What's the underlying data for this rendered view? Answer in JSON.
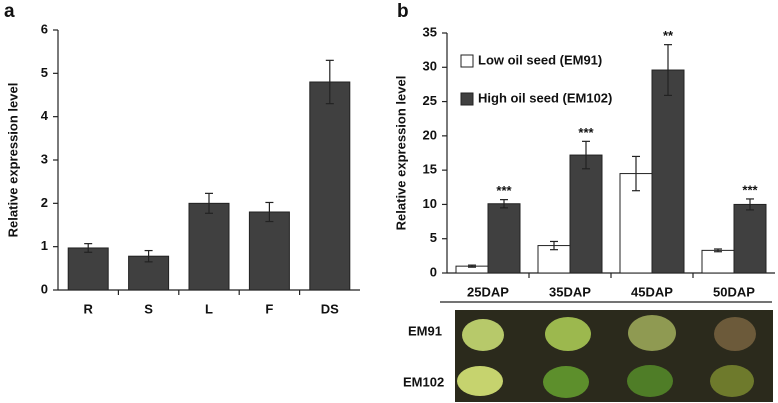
{
  "panel_labels": [
    "a",
    "b"
  ],
  "photo": {
    "row_labels": [
      "EM91",
      "EM102"
    ]
  },
  "chart_data": [
    {
      "type": "bar",
      "y_label": "Relative expression level",
      "categories": [
        "R",
        "S",
        "L",
        "F",
        "DS"
      ],
      "values": [
        0.97,
        0.78,
        2.0,
        1.8,
        4.8
      ],
      "errors": [
        0.1,
        0.13,
        0.23,
        0.22,
        0.5
      ],
      "color": "#404040",
      "ylim": [
        0,
        6
      ],
      "yticks": [
        0,
        1,
        2,
        3,
        4,
        5,
        6
      ]
    },
    {
      "type": "bar",
      "y_label": "Relative expression level",
      "categories": [
        "25DAP",
        "35DAP",
        "45DAP",
        "50DAP"
      ],
      "series": [
        {
          "name": "Low oil seed (EM91)",
          "color": "#ffffff",
          "values": [
            1.0,
            4.0,
            14.5,
            3.3
          ],
          "errors": [
            0.15,
            0.6,
            2.5,
            0.2
          ]
        },
        {
          "name": "High oil seed (EM102)",
          "color": "#404040",
          "values": [
            10.1,
            17.2,
            29.6,
            10.0
          ],
          "errors": [
            0.6,
            2.0,
            3.7,
            0.8
          ],
          "significance": [
            "***",
            "***",
            "**",
            "***"
          ]
        }
      ],
      "legend": "upper left",
      "ylim": [
        0,
        35
      ],
      "yticks": [
        0,
        5,
        10,
        15,
        20,
        25,
        30,
        35
      ]
    }
  ]
}
